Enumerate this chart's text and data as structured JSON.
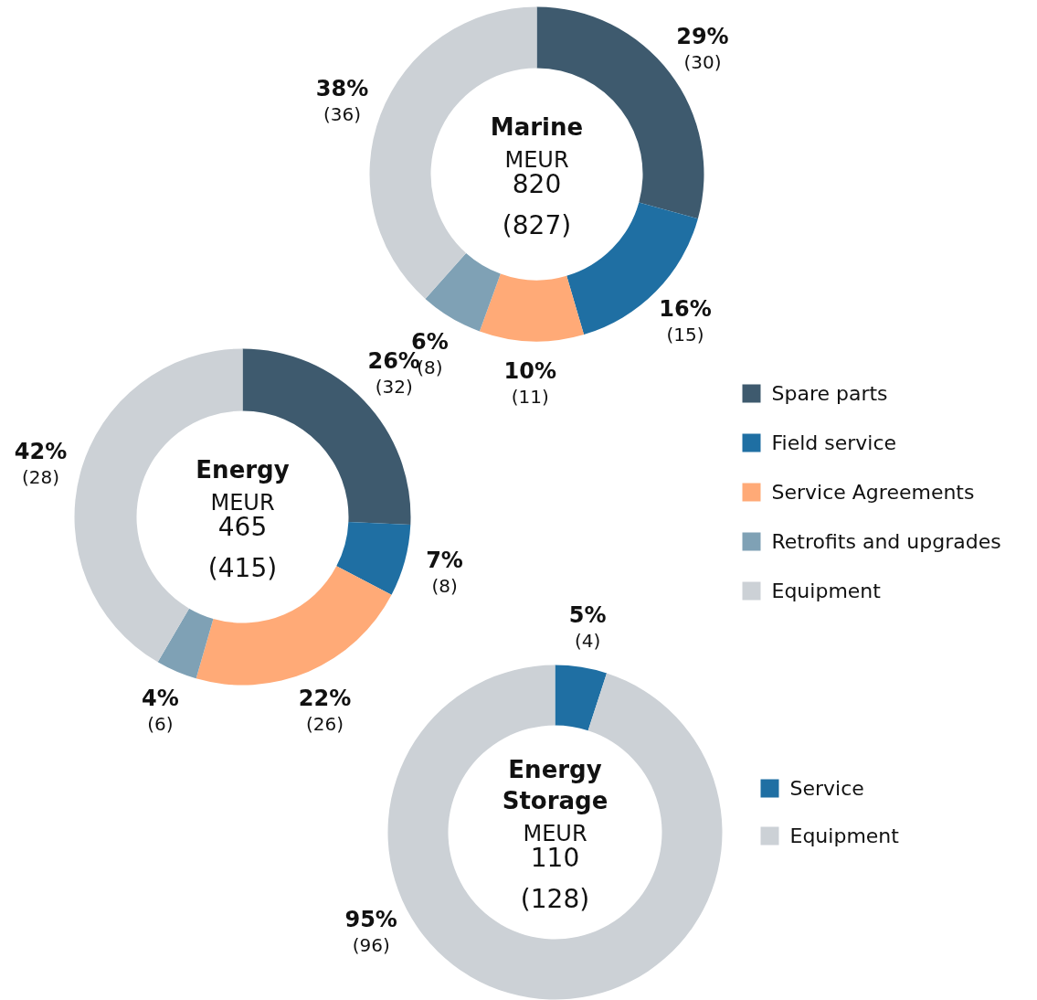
{
  "chart_data": [
    {
      "type": "donut",
      "title": "Marine",
      "annotations": [
        "MEUR",
        "820",
        "(827)"
      ],
      "categories": [
        "Spare parts",
        "Field service",
        "Service Agreements",
        "Retrofits and upgrades",
        "Equipment"
      ],
      "values": [
        29,
        16,
        10,
        6,
        38
      ],
      "value_labels": [
        "29%\n(30)",
        "16%\n(15)",
        "10%\n(11)",
        "6%\n(8)",
        "38%\n(36)"
      ],
      "colors": [
        "#3e5a6e",
        "#1f6fa3",
        "#ffaa77",
        "#7fa1b5",
        "#ccd1d6"
      ],
      "legend": "bottom right"
    },
    {
      "type": "donut",
      "title": "Energy",
      "annotations": [
        "MEUR",
        "465",
        "(415)"
      ],
      "categories": [
        null,
        null,
        null,
        null,
        null
      ],
      "values": [
        26,
        7,
        22,
        4,
        42
      ],
      "value_labels": [
        "26%\n(32)",
        "7%\n(8)",
        "22%\n(26)",
        "4%\n(6)",
        "42%\n(28)"
      ],
      "colors": [
        "#3e5a6e",
        "#1f6fa3",
        "#ffaa77",
        "#7fa1b5",
        "#ccd1d6"
      ]
    },
    {
      "type": "donut",
      "title": "Energy Storage",
      "annotations": [
        "MEUR",
        "110",
        "(128)"
      ],
      "categories": [
        "Service",
        "Equipment"
      ],
      "values": [
        5,
        95
      ],
      "value_labels": [
        "5%\n(4)",
        "95%\n(96)"
      ],
      "colors": [
        "#1f6fa3",
        "#ccd1d6"
      ],
      "legend": "right"
    }
  ]
}
